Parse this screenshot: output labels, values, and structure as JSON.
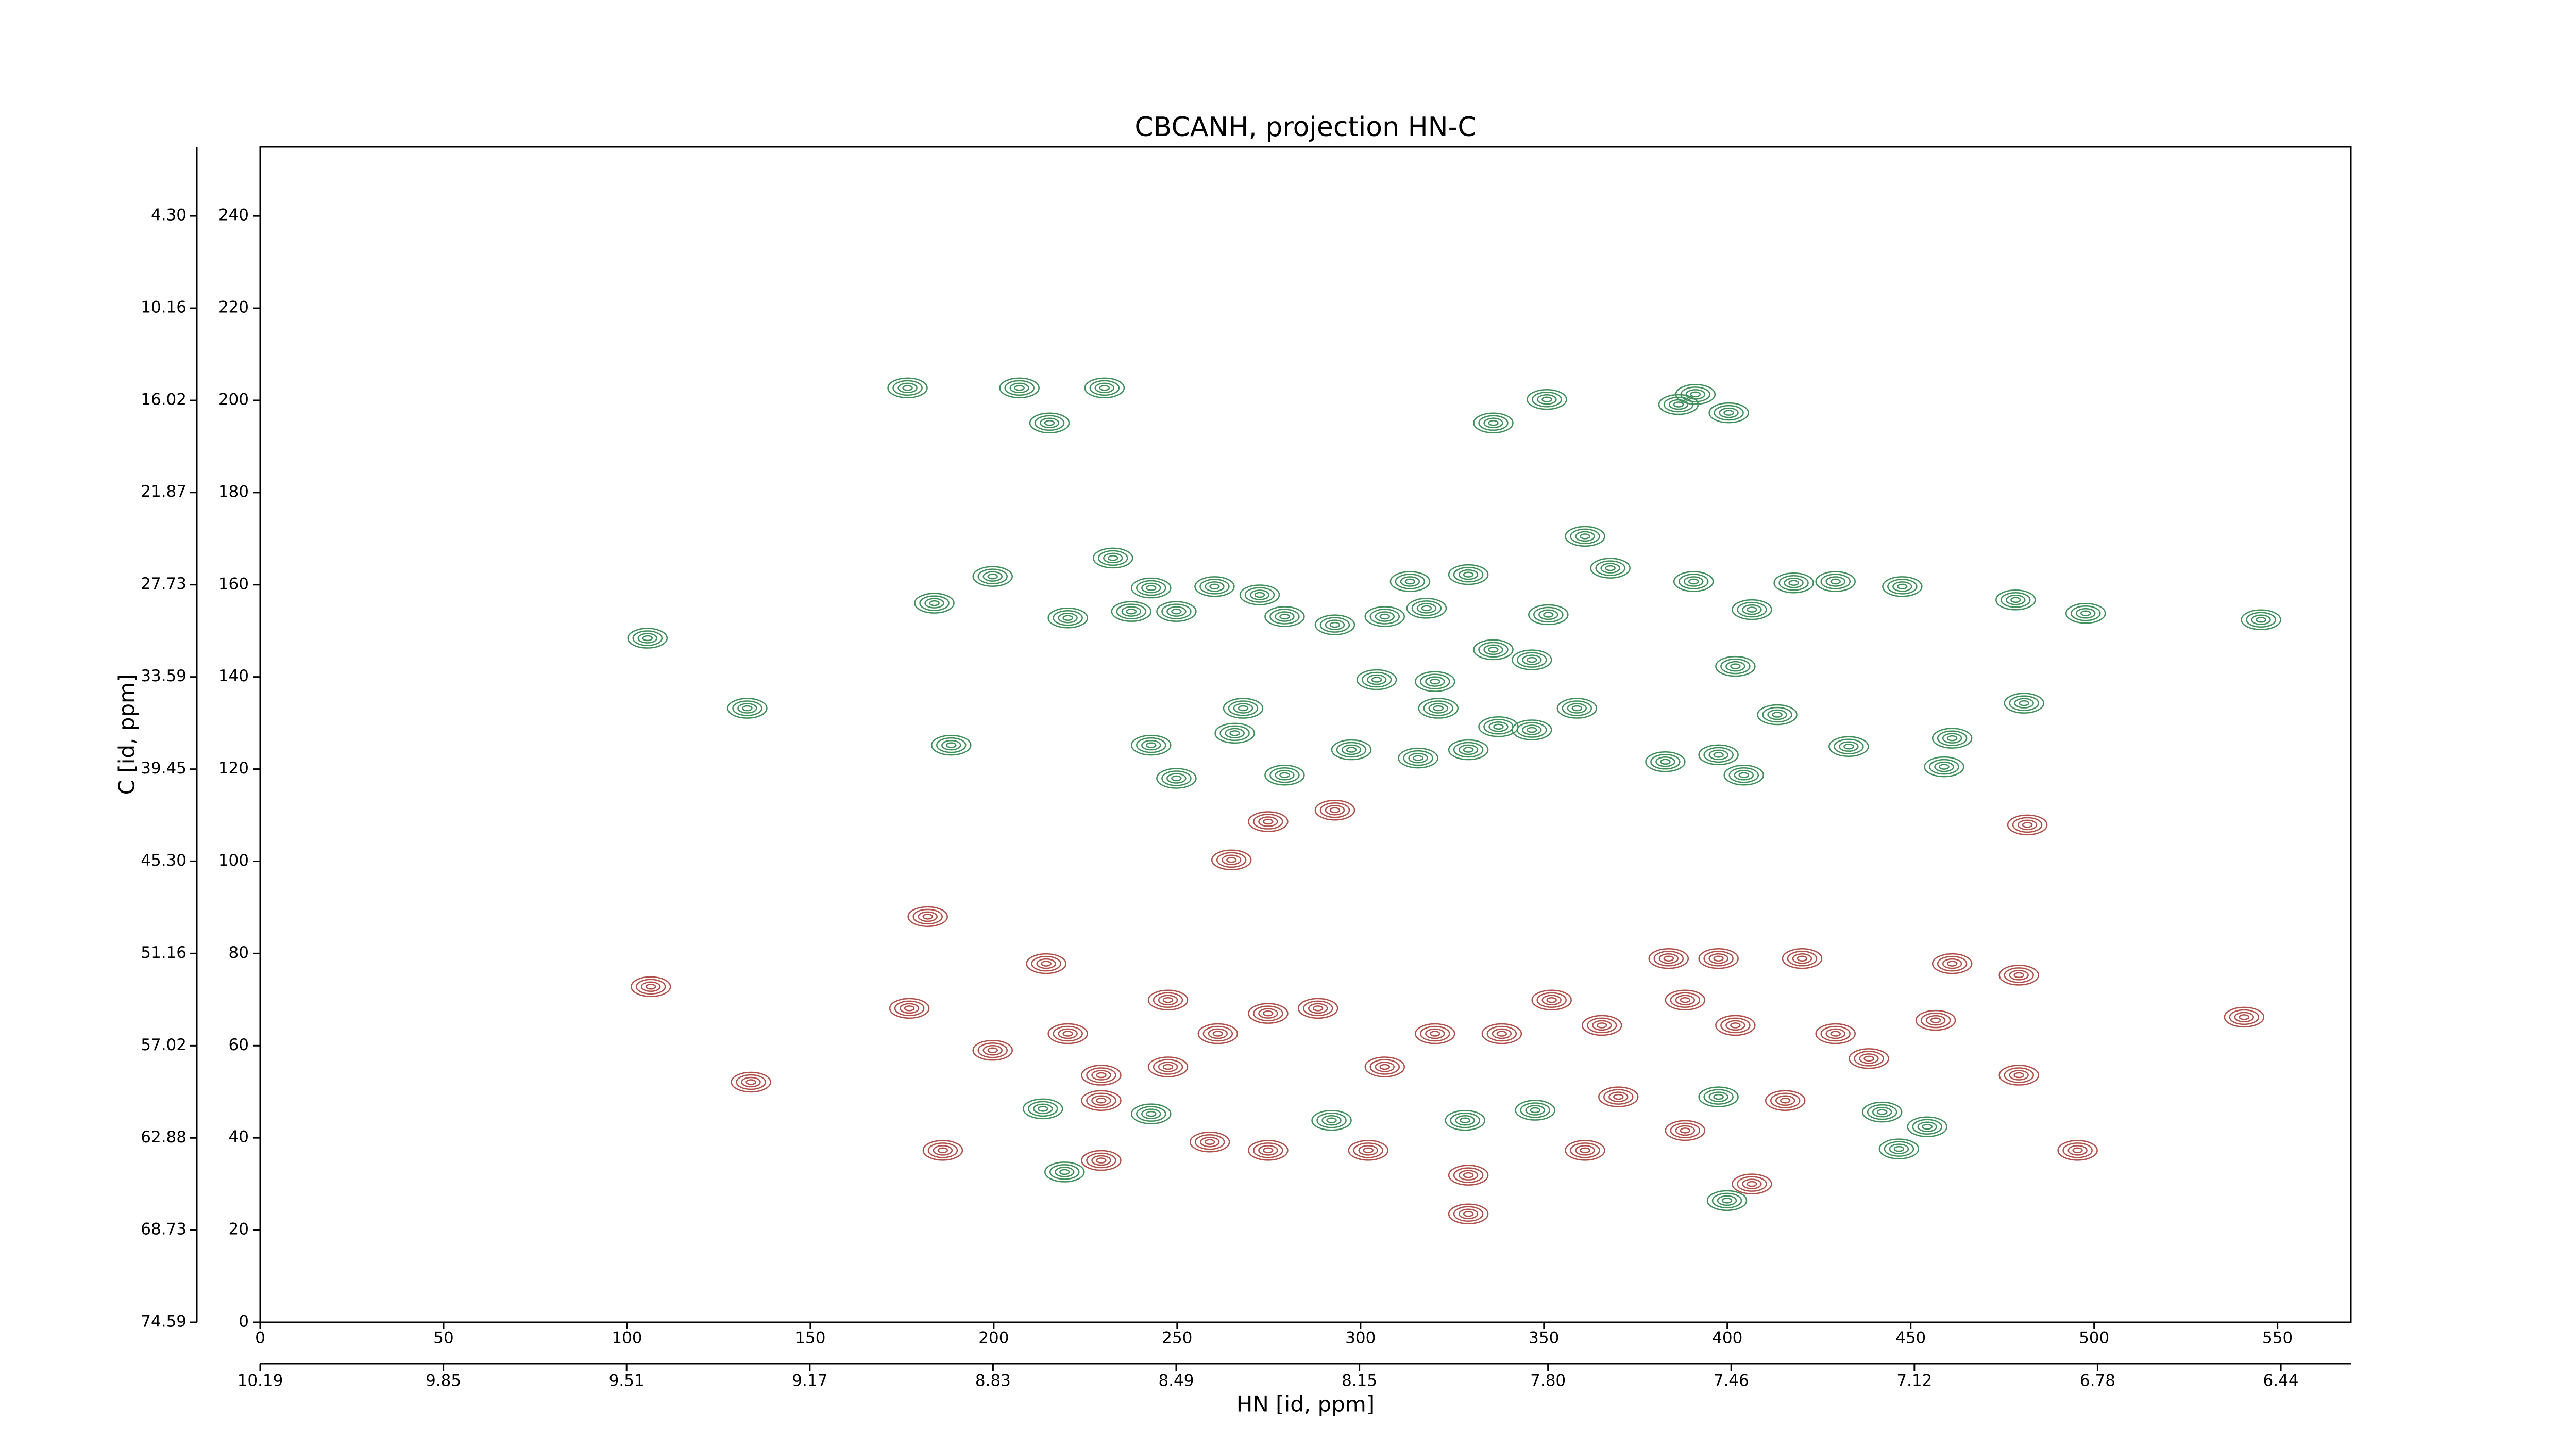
{
  "chart_data": {
    "type": "contour",
    "title": "CBCANH, projection HN-C",
    "xlabel": "HN [id, ppm]",
    "ylabel": "C [id, ppm]",
    "xlim": [
      0,
      570
    ],
    "ylim": [
      0,
      255
    ],
    "xticks": [
      0,
      50,
      100,
      150,
      200,
      250,
      300,
      350,
      400,
      450,
      500,
      550
    ],
    "yticks": [
      0,
      20,
      40,
      60,
      80,
      100,
      120,
      140,
      160,
      180,
      200,
      220,
      240
    ],
    "x2lim": [
      10.19,
      6.31
    ],
    "x2ticks": [
      10.19,
      9.85,
      9.51,
      9.17,
      8.83,
      8.49,
      8.15,
      {
        "value": 7.8,
        "label": "7.80"
      },
      7.46,
      7.12,
      6.78,
      6.44
    ],
    "y2lim": [
      74.59,
      -0.09
    ],
    "y2ticks": [
      74.59,
      68.73,
      62.88,
      57.02,
      51.16,
      {
        "value": 45.3,
        "label": "45.30"
      },
      39.45,
      33.59,
      27.73,
      21.87,
      16.02,
      10.16,
      {
        "value": 4.3,
        "label": "4.30"
      }
    ],
    "series": [
      {
        "color": "#3f8f5a",
        "x": [
          176.5,
          207.0,
          215.2,
          230.2,
          336.2,
          350.8,
          386.7,
          400.4,
          391.3,
          105.6,
          132.8,
          188.4,
          183.8,
          199.7,
          220.2,
          232.5,
          242.9,
          260.2,
          272.5,
          237.5,
          249.8,
          279.3,
          293.0,
          306.6,
          313.5,
          318.0,
          329.4,
          351.2,
          361.2,
          368.1,
          390.8,
          406.7,
          418.1,
          429.5,
          447.7,
          478.6,
          497.7,
          545.5,
          320.3,
          336.2,
          346.7,
          268.0,
          304.4,
          242.9,
          249.8,
          265.7,
          279.3,
          297.5,
          315.7,
          321.2,
          329.4,
          337.6,
          346.7,
          359.0,
          383.1,
          397.6,
          404.5,
          413.6,
          433.1,
          459.1,
          461.3,
          480.9,
          402.2,
          213.4,
          219.3,
          242.9,
          292.1,
          328.5,
          347.6,
          399.9,
          442.2,
          454.5,
          446.8,
          397.6
        ],
        "y": [
          202.7,
          202.7,
          195.1,
          202.7,
          195.1,
          200.2,
          199.1,
          197.3,
          201.3,
          148.4,
          133.2,
          125.2,
          156.0,
          161.8,
          152.8,
          165.8,
          159.3,
          159.6,
          157.8,
          154.2,
          154.2,
          153.1,
          151.3,
          153.1,
          160.7,
          154.9,
          162.2,
          153.5,
          170.5,
          163.6,
          160.7,
          154.6,
          160.4,
          160.7,
          159.6,
          156.7,
          153.8,
          152.4,
          139.0,
          145.9,
          143.7,
          133.2,
          139.4,
          125.2,
          118.0,
          127.8,
          118.7,
          124.2,
          122.4,
          133.2,
          124.2,
          129.2,
          128.5,
          133.2,
          121.6,
          123.1,
          118.7,
          131.8,
          124.9,
          120.5,
          126.7,
          134.3,
          142.3,
          46.3,
          32.6,
          45.2,
          43.8,
          43.8,
          46.0,
          26.4,
          45.6,
          42.4,
          37.6,
          48.9
        ]
      },
      {
        "color": "#b0504a",
        "x": [
          274.8,
          293.0,
          264.8,
          481.8,
          106.5,
          133.8,
          186.1,
          182.0,
          199.7,
          214.3,
          177.0,
          220.2,
          229.3,
          247.5,
          261.1,
          274.8,
          288.4,
          306.6,
          320.3,
          338.5,
          352.1,
          365.8,
          388.5,
          402.2,
          429.5,
          456.8,
          420.4,
          461.3,
          479.5,
          479.5,
          495.5,
          540.9,
          370.3,
          361.2,
          388.5,
          329.4,
          329.4,
          406.7,
          229.3,
          258.9,
          274.8,
          302.1,
          229.3,
          247.5,
          415.8,
          438.6,
          384.0,
          397.6
        ],
        "y": [
          108.6,
          111.1,
          100.3,
          107.9,
          72.8,
          52.1,
          37.3,
          88.0,
          59.0,
          77.8,
          68.1,
          62.6,
          53.6,
          69.9,
          62.6,
          67.0,
          68.1,
          55.4,
          62.6,
          62.6,
          69.9,
          64.4,
          69.9,
          64.4,
          62.6,
          65.5,
          78.9,
          77.8,
          75.3,
          53.6,
          37.3,
          66.2,
          48.9,
          37.3,
          41.6,
          31.9,
          23.5,
          30.0,
          35.1,
          39.1,
          37.3,
          37.3,
          48.1,
          55.4,
          48.1,
          57.2,
          78.9,
          78.9
        ]
      }
    ]
  }
}
